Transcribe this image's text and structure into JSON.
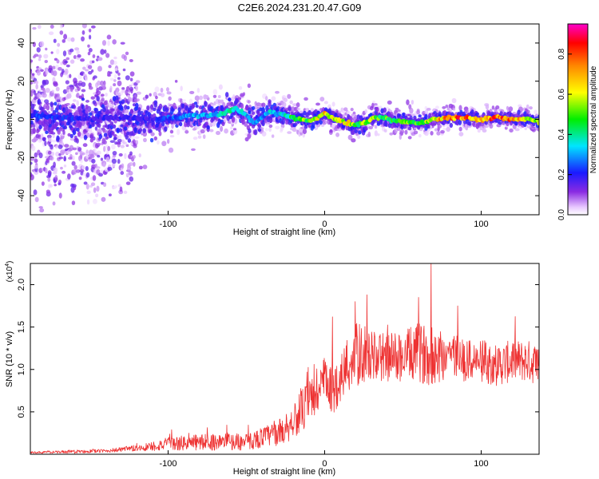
{
  "title": "C2E6.2024.231.20.47.G09",
  "chart_data": [
    {
      "type": "heatmap",
      "name": "spectrogram",
      "xlabel": "Height of straight line (km)",
      "ylabel": "Frequency (Hz)",
      "xlim": [
        -188,
        137
      ],
      "ylim": [
        -50,
        50
      ],
      "x_ticks": [
        -100,
        0,
        100
      ],
      "y_ticks": [
        -40,
        -20,
        0,
        20,
        40
      ],
      "colorbar": {
        "label": "Normalized spectral amplitude",
        "range": [
          0,
          0.95
        ],
        "ticks": [
          0.0,
          0.2,
          0.4,
          0.6,
          0.8
        ],
        "colormap": "rainbow (white-violet-blue-cyan-green-yellow-red-magenta)"
      },
      "ridge": {
        "description": "dominant frequency track (Hz) vs height (km)",
        "x": [
          -188,
          -170,
          -150,
          -130,
          -110,
          -95,
          -85,
          -75,
          -65,
          -57,
          -50,
          -45,
          -40,
          -35,
          -30,
          -25,
          -20,
          -15,
          -10,
          -5,
          0,
          5,
          10,
          15,
          20,
          25,
          30,
          35,
          40,
          45,
          50,
          60,
          70,
          80,
          90,
          100,
          110,
          120,
          130,
          137
        ],
        "y": [
          2,
          1,
          0,
          1,
          0,
          1,
          2,
          2,
          3,
          6,
          2,
          -2,
          1,
          4,
          3,
          2,
          1,
          0,
          -1,
          1,
          3,
          1,
          -1,
          -2,
          -3,
          -2,
          0,
          1,
          0,
          -1,
          -1,
          -2,
          0,
          1,
          1,
          0,
          1,
          0,
          0,
          -1
        ],
        "peak_amplitude": [
          0.25,
          0.25,
          0.2,
          0.2,
          0.2,
          0.3,
          0.35,
          0.35,
          0.4,
          0.45,
          0.35,
          0.3,
          0.3,
          0.4,
          0.35,
          0.45,
          0.5,
          0.55,
          0.6,
          0.65,
          0.75,
          0.7,
          0.65,
          0.7,
          0.55,
          0.6,
          0.6,
          0.55,
          0.55,
          0.5,
          0.55,
          0.55,
          0.7,
          0.85,
          0.85,
          0.8,
          0.85,
          0.85,
          0.7,
          0.6
        ]
      },
      "noise_spread_hz": {
        "x": [
          -188,
          -160,
          -130,
          -120,
          -100,
          -60,
          -40,
          -20,
          0,
          50,
          100,
          137
        ],
        "y": [
          50,
          50,
          45,
          25,
          15,
          14,
          14,
          10,
          9,
          8,
          7,
          6
        ]
      }
    },
    {
      "type": "line",
      "name": "snr",
      "xlabel": "Height of straight line (km)",
      "ylabel": "SNR (10 * v/v)",
      "y_scale_note": "(x10",
      "y_scale_exponent": "4",
      "xlim": [
        -188,
        137
      ],
      "ylim": [
        0,
        2.25
      ],
      "x_ticks": [
        -100,
        0,
        100
      ],
      "y_ticks": [
        0.5,
        1.0,
        1.5,
        2.0
      ],
      "color": "#ee3333",
      "envelope": {
        "description": "approximate mean SNR (x10^4) with spikes",
        "x": [
          -188,
          -160,
          -140,
          -120,
          -100,
          -80,
          -60,
          -50,
          -40,
          -30,
          -25,
          -20,
          -15,
          -10,
          -5,
          0,
          5,
          10,
          15,
          20,
          25,
          30,
          40,
          50,
          60,
          70,
          80,
          90,
          100,
          110,
          120,
          130,
          137
        ],
        "mean": [
          0.02,
          0.03,
          0.04,
          0.07,
          0.12,
          0.14,
          0.15,
          0.14,
          0.2,
          0.25,
          0.3,
          0.4,
          0.5,
          0.6,
          0.75,
          0.85,
          0.75,
          0.9,
          1.05,
          1.15,
          1.2,
          1.15,
          1.15,
          1.15,
          1.2,
          1.15,
          1.2,
          1.1,
          1.1,
          1.05,
          1.1,
          1.1,
          1.05
        ],
        "spread": [
          0.01,
          0.02,
          0.02,
          0.04,
          0.08,
          0.1,
          0.1,
          0.1,
          0.12,
          0.15,
          0.18,
          0.2,
          0.25,
          0.3,
          0.35,
          0.3,
          0.3,
          0.3,
          0.35,
          0.4,
          0.35,
          0.3,
          0.3,
          0.3,
          0.35,
          0.35,
          0.3,
          0.25,
          0.25,
          0.25,
          0.25,
          0.25,
          0.25
        ],
        "spikes": [
          {
            "x": 68,
            "y": 2.25
          },
          {
            "x": 60,
            "y": 1.85
          },
          {
            "x": 27,
            "y": 1.88
          },
          {
            "x": 85,
            "y": 1.75
          },
          {
            "x": 5,
            "y": 1.62
          }
        ]
      }
    }
  ]
}
